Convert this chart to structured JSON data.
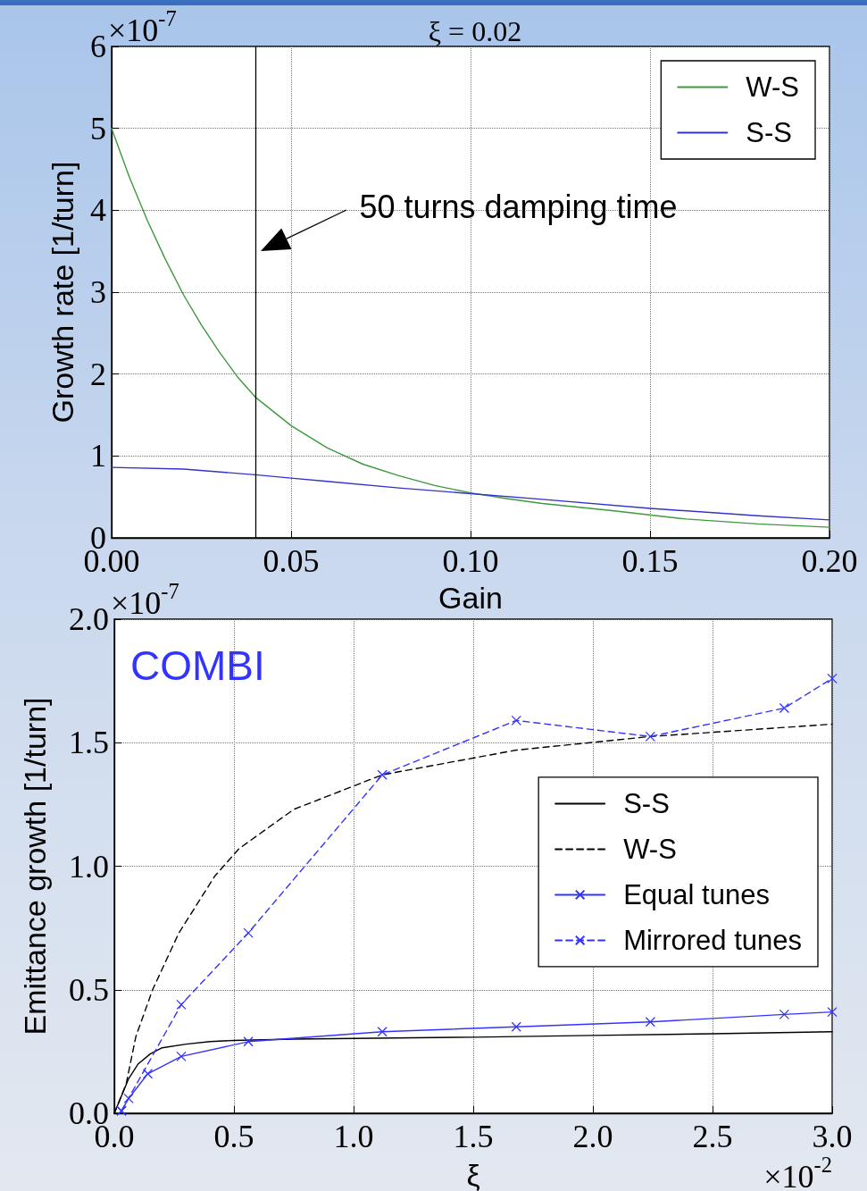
{
  "chart_data": [
    {
      "type": "line",
      "title": "ξ = 0.02",
      "xlabel": "Gain",
      "ylabel": "Growth rate [1/turn]",
      "annotations": [
        "×10$^{-7}$",
        "50 turns damping time"
      ],
      "series": [
        {
          "name": "W-S",
          "color": "#3c9a3c",
          "x": [
            0,
            0.005,
            0.01,
            0.015,
            0.02,
            0.025,
            0.03,
            0.035,
            0.04,
            0.05,
            0.06,
            0.07,
            0.08,
            0.09,
            0.1,
            0.11,
            0.12,
            0.14,
            0.16,
            0.18,
            0.2
          ],
          "values": [
            5,
            4.4,
            3.87,
            3.4,
            2.97,
            2.6,
            2.27,
            1.97,
            1.72,
            1.37,
            1.1,
            0.9,
            0.76,
            0.64,
            0.55,
            0.48,
            0.42,
            0.33,
            0.23,
            0.17,
            0.13
          ]
        },
        {
          "name": "S-S",
          "color": "#3333cc",
          "x": [
            0,
            0.02,
            0.04,
            0.05,
            0.06,
            0.08,
            0.1,
            0.12,
            0.15,
            0.18,
            0.2
          ],
          "values": [
            0.86,
            0.84,
            0.77,
            0.73,
            0.69,
            0.61,
            0.54,
            0.47,
            0.36,
            0.27,
            0.22
          ]
        }
      ],
      "xlim": [
        0,
        0.2
      ],
      "xticks": [
        {
          "value": 0,
          "label": "0.00"
        },
        0.05,
        {
          "value": 0.1,
          "label": "0.10"
        },
        0.15,
        {
          "value": 0.2,
          "label": "0.20"
        }
      ],
      "ylim": [
        0,
        6
      ],
      "yticks": [
        0,
        1,
        2,
        3,
        4,
        5,
        6
      ],
      "ref_lines": [
        {
          "axis": "x",
          "value": 0.04,
          "color": "#000000"
        }
      ],
      "grid": true,
      "legend": "top right",
      "marker": "none",
      "line_style": "solid"
    },
    {
      "type": "line",
      "xlabel": "ξ",
      "ylabel": "Emittance growth [1/turn]",
      "annotations": [
        "×10$^{-7}$",
        "×10$^{-2}$",
        "COMBI"
      ],
      "series": [
        {
          "name": "S-S",
          "color": "#000000",
          "line_style": "solid",
          "marker": "none",
          "x": [
            0,
            0.03,
            0.06,
            0.1,
            0.15,
            0.2,
            0.3,
            0.4,
            0.5,
            0.75,
            1,
            1.5,
            2,
            2.5,
            3
          ],
          "values": [
            0,
            0.07,
            0.14,
            0.2,
            0.24,
            0.265,
            0.28,
            0.29,
            0.295,
            0.3,
            0.303,
            0.308,
            0.315,
            0.322,
            0.33
          ]
        },
        {
          "name": "W-S",
          "color": "#000000",
          "line_style": "dashed",
          "marker": "none",
          "x": [
            0,
            0.05,
            0.09,
            0.16,
            0.27,
            0.42,
            0.52,
            0.75,
            1.12,
            1.68,
            2.24,
            3
          ],
          "values": [
            0,
            0.12,
            0.31,
            0.5,
            0.73,
            0.96,
            1.07,
            1.23,
            1.37,
            1.47,
            1.525,
            1.575
          ]
        },
        {
          "name": "Equal tunes",
          "color": "#3333ff",
          "line_style": "solid",
          "marker": "cross",
          "x": [
            0.03,
            0.06,
            0.14,
            0.28,
            0.56,
            1.12,
            1.68,
            2.24,
            2.8,
            3
          ],
          "values": [
            0.01,
            0.06,
            0.16,
            0.23,
            0.29,
            0.33,
            0.35,
            0.37,
            0.4,
            0.41
          ]
        },
        {
          "name": "Mirrored tunes",
          "color": "#3333ff",
          "line_style": "dashed",
          "marker": "cross",
          "x": [
            0.03,
            0.28,
            0.56,
            1.12,
            1.68,
            2.24,
            2.8,
            3
          ],
          "values": [
            0.01,
            0.44,
            0.73,
            1.37,
            1.59,
            1.525,
            1.64,
            1.76
          ]
        }
      ],
      "xlim": [
        0,
        3
      ],
      "xticks": [
        {
          "value": 0,
          "label": "0.0"
        },
        0.5,
        {
          "value": 1,
          "label": "1.0"
        },
        1.5,
        {
          "value": 2,
          "label": "2.0"
        },
        2.5,
        {
          "value": 3,
          "label": "3.0"
        }
      ],
      "ylim": [
        0,
        2
      ],
      "yticks": [
        {
          "value": 0,
          "label": "0.0"
        },
        0.5,
        {
          "value": 1,
          "label": "1.0"
        },
        1.5,
        {
          "value": 2,
          "label": "2.0"
        }
      ],
      "grid": true,
      "legend": "right"
    }
  ]
}
